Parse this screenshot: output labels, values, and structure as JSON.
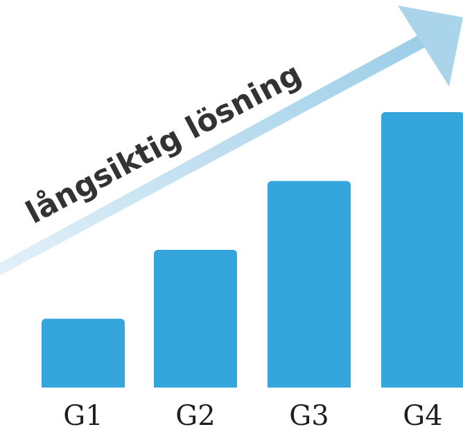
{
  "chart_data": {
    "type": "bar",
    "categories": [
      "G1",
      "G2",
      "G3",
      "G4"
    ],
    "values": [
      1,
      2,
      3,
      4
    ],
    "ylim": [
      0,
      4
    ],
    "grid": false,
    "bar_color": "#35a6dc",
    "annotation": {
      "text": "långsiktig lösning",
      "kind": "rising-arrow",
      "color": "#a9d4ea"
    }
  }
}
